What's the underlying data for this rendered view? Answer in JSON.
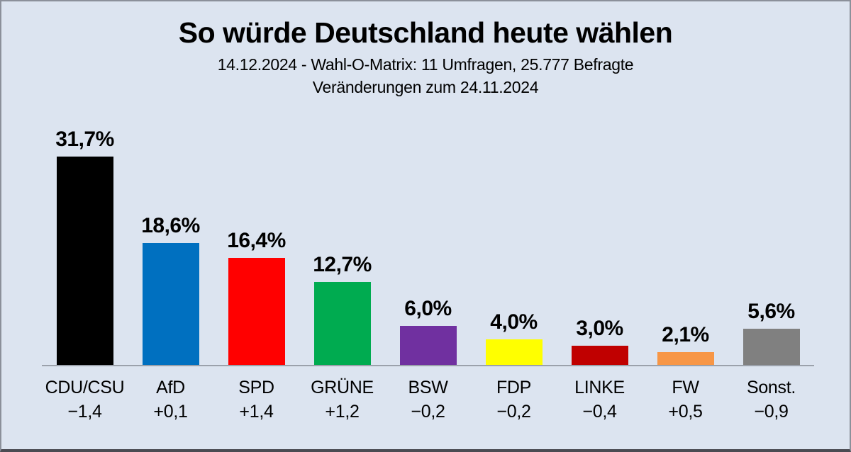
{
  "title": "So würde Deutschland heute wählen",
  "subtitle1": "14.12.2024 - Wahl-O-Matrix: 11 Umfragen, 25.777 Befragte",
  "subtitle2": "Veränderungen zum 24.11.2024",
  "colors": {
    "background": "#dce4f0",
    "frame": "#8b909a",
    "frame_bottom": "#4a4b52",
    "axis": "#9ba1ab",
    "text": "#000000"
  },
  "chart_data": {
    "type": "bar",
    "title": "So würde Deutschland heute wählen",
    "subtitle": "14.12.2024 - Wahl-O-Matrix: 11 Umfragen, 25.777 Befragte",
    "note": "Veränderungen zum 24.11.2024",
    "categories": [
      "CDU/CSU",
      "AfD",
      "SPD",
      "GRÜNE",
      "BSW",
      "FDP",
      "LINKE",
      "FW",
      "Sonst."
    ],
    "values": [
      31.7,
      18.6,
      16.4,
      12.7,
      6.0,
      4.0,
      3.0,
      2.1,
      5.6
    ],
    "value_labels": [
      "31,7%",
      "18,6%",
      "16,4%",
      "12,7%",
      "6,0%",
      "4,0%",
      "3,0%",
      "2,1%",
      "5,6%"
    ],
    "changes": [
      "−1,4",
      "+0,1",
      "+1,4",
      "+1,2",
      "−0,2",
      "−0,2",
      "−0,4",
      "+0,5",
      "−0,9"
    ],
    "bar_colors": [
      "#000000",
      "#0070C0",
      "#FF0000",
      "#00AB50",
      "#7030A0",
      "#FFFF00",
      "#C00000",
      "#F79646",
      "#808080"
    ],
    "xlabel": "",
    "ylabel": "",
    "ylim": [
      0,
      33.5
    ],
    "grid": false,
    "legend": "none",
    "value_label_position": "above-bar",
    "category_label_position": "below-axis"
  }
}
